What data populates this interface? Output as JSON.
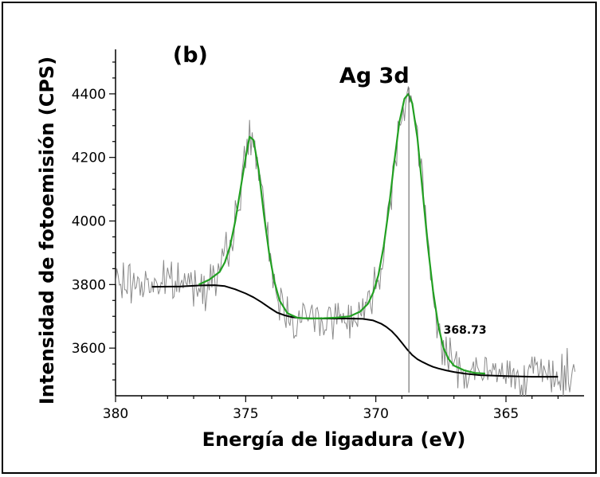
{
  "chart_data": {
    "type": "line",
    "title": "",
    "xlabel": "Energía de ligadura (eV)",
    "ylabel": "Intensidad de fotoemisión (CPS)",
    "xlim": [
      380,
      362
    ],
    "ylim": [
      3450,
      4540
    ],
    "x_reversed": true,
    "grid": false,
    "legend": "none",
    "x_ticks": [
      380,
      375,
      370,
      365
    ],
    "y_ticks": [
      3600,
      3800,
      4000,
      4200,
      4400
    ],
    "annotations": [
      {
        "text": "(b)",
        "x": 377.8,
        "y": 4500
      },
      {
        "text": "Ag 3d",
        "x": 371.4,
        "y": 4435
      },
      {
        "text": "368.73",
        "x": 367.4,
        "y": 3645
      }
    ],
    "peak_marker": {
      "x": 368.73,
      "y_from": 3460,
      "y_to": 4420
    },
    "series": [
      {
        "role": "raw",
        "color": "#8a8a8a",
        "x_range": [
          380,
          362.3
        ],
        "step": 0.05,
        "noise": 55,
        "seed": 7
      },
      {
        "role": "fit",
        "color": "#22a022",
        "x": [
          376.8,
          376.4,
          376.0,
          375.8,
          375.6,
          375.4,
          375.2,
          375.0,
          374.85,
          374.7,
          374.5,
          374.3,
          374.1,
          373.9,
          373.7,
          373.4,
          373.0,
          372.5,
          372.0,
          371.5,
          371.0,
          370.6,
          370.3,
          370.1,
          369.9,
          369.7,
          369.5,
          369.3,
          369.1,
          368.9,
          368.75,
          368.6,
          368.4,
          368.2,
          368.0,
          367.8,
          367.6,
          367.4,
          367.2,
          367.0,
          366.6,
          366.2,
          365.8
        ],
        "y": [
          3800,
          3815,
          3840,
          3870,
          3920,
          4000,
          4100,
          4200,
          4265,
          4255,
          4160,
          4020,
          3900,
          3810,
          3750,
          3710,
          3695,
          3693,
          3694,
          3696,
          3700,
          3715,
          3740,
          3775,
          3830,
          3920,
          4040,
          4180,
          4310,
          4385,
          4400,
          4370,
          4260,
          4090,
          3920,
          3780,
          3670,
          3600,
          3565,
          3545,
          3530,
          3522,
          3520
        ]
      },
      {
        "role": "background",
        "color": "#000000",
        "x": [
          378.6,
          377.5,
          376.8,
          376.2,
          375.8,
          375.4,
          375.0,
          374.7,
          374.4,
          374.1,
          373.8,
          373.5,
          373.2,
          372.8,
          372.0,
          371.0,
          370.5,
          370.1,
          369.8,
          369.6,
          369.4,
          369.2,
          369.0,
          368.8,
          368.6,
          368.4,
          368.2,
          368.0,
          367.8,
          367.6,
          367.3,
          367.0,
          366.6,
          366.0,
          365.0,
          364.0,
          363.0
        ],
        "y": [
          3793,
          3794,
          3797,
          3798,
          3795,
          3785,
          3772,
          3760,
          3745,
          3728,
          3712,
          3703,
          3697,
          3694,
          3693,
          3693,
          3692,
          3687,
          3677,
          3667,
          3654,
          3637,
          3617,
          3596,
          3578,
          3565,
          3556,
          3548,
          3541,
          3536,
          3530,
          3525,
          3520,
          3515,
          3512,
          3510,
          3510
        ]
      }
    ]
  }
}
